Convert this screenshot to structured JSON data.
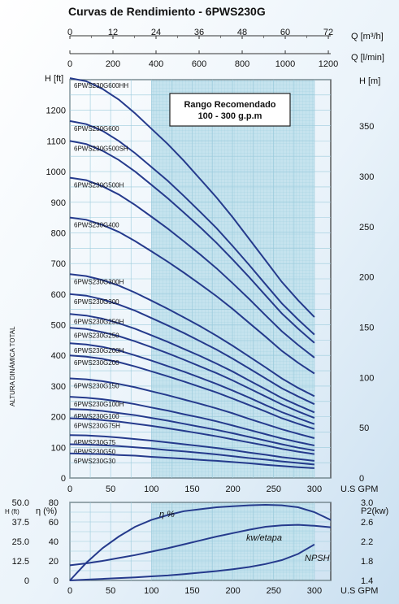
{
  "chart_data": [
    {
      "type": "line",
      "title": "Curvas de Rendimiento - 6PWS230G",
      "xlabel": "U.S GPM",
      "x_axis_ticks": [
        0,
        50,
        100,
        150,
        200,
        250,
        300
      ],
      "xlim": [
        0,
        320
      ],
      "top_axis_m3h": {
        "label": "Q [m³/h]",
        "ticks": [
          0,
          12,
          24,
          36,
          48,
          60,
          72
        ]
      },
      "top_axis_lmin": {
        "label": "Q [l/min]",
        "ticks": [
          0,
          200,
          400,
          600,
          800,
          1000,
          1200
        ]
      },
      "ylabel_left": "H [ft]",
      "ylabel_right": "H [m]",
      "side_label": "ALTURA DINÁMICA TOTAL",
      "ylim_ft": [
        0,
        1300
      ],
      "yticks_ft": [
        0,
        100,
        200,
        300,
        400,
        500,
        600,
        700,
        800,
        900,
        1000,
        1100,
        1200
      ],
      "yticks_m": [
        0,
        50,
        100,
        150,
        200,
        250,
        300,
        350
      ],
      "recommended_range": {
        "label": "Rango Recomendado",
        "sublabel": "100 - 300 g.p.m",
        "from": 100,
        "to": 300
      },
      "x": [
        0,
        20,
        40,
        60,
        80,
        100,
        120,
        140,
        160,
        180,
        200,
        220,
        240,
        260,
        280,
        300,
        320
      ],
      "series": [
        {
          "name": "6PWS230G600HH",
          "values": [
            1305,
            1295,
            1270,
            1235,
            1190,
            1140,
            1090,
            1035,
            975,
            915,
            850,
            780,
            710,
            640,
            580,
            525,
            null
          ]
        },
        {
          "name": "6PWS230G600",
          "values": [
            1165,
            1155,
            1133,
            1100,
            1060,
            1015,
            970,
            920,
            868,
            815,
            756,
            695,
            632,
            570,
            517,
            468,
            null
          ]
        },
        {
          "name": "6PWS230G500SH",
          "values": [
            1100,
            1090,
            1068,
            1038,
            1000,
            957,
            913,
            866,
            818,
            767,
            712,
            655,
            596,
            537,
            487,
            441,
            null
          ]
        },
        {
          "name": "6PWS230G500H",
          "values": [
            980,
            972,
            952,
            925,
            891,
            853,
            814,
            772,
            729,
            684,
            635,
            584,
            531,
            479,
            434,
            393,
            null
          ]
        },
        {
          "name": "6PWS230G400",
          "values": [
            850,
            843,
            826,
            803,
            773,
            740,
            706,
            670,
            632,
            593,
            551,
            506,
            461,
            415,
            376,
            341,
            null
          ]
        },
        {
          "name": "6PWS230G300H",
          "values": [
            665,
            659,
            646,
            628,
            605,
            579,
            552,
            524,
            495,
            464,
            431,
            396,
            361,
            325,
            294,
            267,
            null
          ]
        },
        {
          "name": "6PWS230G300",
          "values": [
            600,
            595,
            583,
            566,
            546,
            522,
            498,
            473,
            446,
            419,
            389,
            357,
            325,
            293,
            266,
            241,
            null
          ]
        },
        {
          "name": "6PWS230G250H",
          "values": [
            535,
            530,
            520,
            505,
            487,
            466,
            444,
            421,
            398,
            373,
            347,
            318,
            290,
            261,
            237,
            214,
            null
          ]
        },
        {
          "name": "6PWS230G250",
          "values": [
            490,
            486,
            476,
            463,
            446,
            427,
            407,
            386,
            364,
            342,
            318,
            292,
            266,
            240,
            217,
            196,
            null
          ]
        },
        {
          "name": "6PWS230G200H",
          "values": [
            440,
            436,
            428,
            416,
            400,
            383,
            365,
            347,
            327,
            307,
            285,
            262,
            238,
            215,
            195,
            176,
            null
          ]
        },
        {
          "name": "6PWS230G200",
          "values": [
            400,
            396,
            389,
            378,
            364,
            348,
            332,
            315,
            297,
            279,
            259,
            238,
            217,
            195,
            177,
            160,
            null
          ]
        },
        {
          "name": "6PWS230G150",
          "values": [
            325,
            322,
            316,
            307,
            296,
            283,
            270,
            256,
            242,
            227,
            211,
            193,
            176,
            159,
            144,
            130,
            null
          ]
        },
        {
          "name": "6PWS230G100H",
          "values": [
            265,
            262,
            257,
            250,
            241,
            230,
            220,
            208,
            197,
            185,
            171,
            157,
            143,
            129,
            117,
            106,
            null
          ]
        },
        {
          "name": "6PWS230G100",
          "values": [
            225,
            223,
            219,
            212,
            205,
            196,
            187,
            177,
            167,
            157,
            146,
            134,
            122,
            110,
            99,
            90,
            null
          ]
        },
        {
          "name": "6PWS230G75H",
          "values": [
            195,
            193,
            189,
            184,
            177,
            170,
            162,
            154,
            145,
            136,
            126,
            116,
            106,
            95,
            86,
            78,
            null
          ]
        },
        {
          "name": "6PWS230G75",
          "values": [
            140,
            139,
            136,
            132,
            127,
            122,
            116,
            110,
            104,
            98,
            91,
            83,
            76,
            68,
            62,
            56,
            null
          ]
        },
        {
          "name": "6PWS230G50",
          "values": [
            110,
            109,
            107,
            104,
            100,
            96,
            91,
            87,
            82,
            77,
            71,
            65,
            60,
            54,
            49,
            44,
            null
          ]
        },
        {
          "name": "6PWS230G30",
          "values": [
            80,
            79,
            78,
            75,
            73,
            69,
            66,
            63,
            59,
            56,
            52,
            48,
            43,
            39,
            35,
            32,
            null
          ]
        }
      ]
    },
    {
      "type": "line",
      "xlabel": "U.S GPM",
      "x_axis_ticks": [
        0,
        50,
        100,
        150,
        200,
        250,
        300
      ],
      "xlim": [
        0,
        320
      ],
      "left_axis_h_ft": {
        "label": "H (ft)",
        "ticks": [
          "0",
          "12.5",
          "25.0",
          "37.5",
          "50.0"
        ]
      },
      "left_axis_eta": {
        "label": "η (%)",
        "ticks": [
          0,
          20,
          40,
          60,
          80
        ]
      },
      "right_axis_p2": {
        "label": "P2(kw)",
        "ticks": [
          "1.4",
          "1.8",
          "2.2",
          "2.6",
          "3.0"
        ]
      },
      "x": [
        0,
        20,
        40,
        60,
        80,
        100,
        120,
        140,
        160,
        180,
        200,
        220,
        240,
        260,
        280,
        300,
        320
      ],
      "series": [
        {
          "name": "η %",
          "values": [
            0,
            18,
            33,
            45,
            55,
            62,
            67,
            71,
            73,
            75,
            76,
            77,
            77.5,
            77,
            75,
            70,
            62
          ]
        },
        {
          "name": "kw/etapa",
          "values": [
            1.71,
            1.75,
            1.8,
            1.86,
            1.92,
            1.99,
            2.06,
            2.14,
            2.22,
            2.3,
            2.37,
            2.44,
            2.5,
            2.53,
            2.54,
            2.52,
            2.49
          ]
        },
        {
          "name": "NPSH",
          "values": [
            0,
            0.5,
            1,
            1.5,
            2,
            2.6,
            3.2,
            4,
            5,
            6,
            7.2,
            8.6,
            10.5,
            13,
            17,
            23,
            null
          ]
        }
      ]
    }
  ]
}
